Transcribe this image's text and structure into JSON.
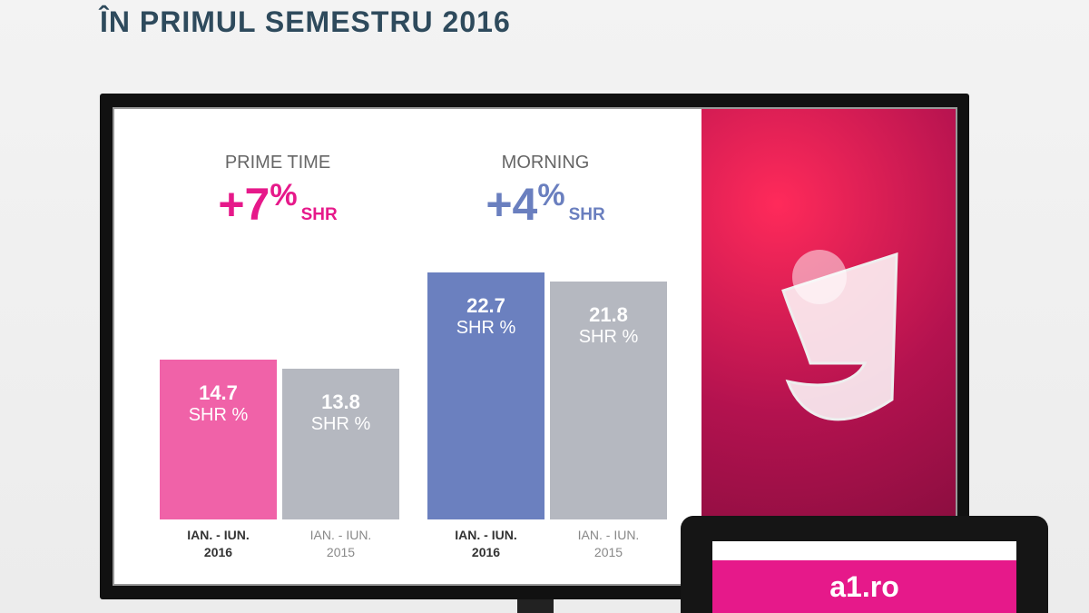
{
  "header": {
    "title": "ÎN PRIMUL SEMESTRU 2016"
  },
  "tablet": {
    "label": "a1.ro"
  },
  "chart_data": [
    {
      "type": "bar",
      "title": "PRIME TIME",
      "change": "+7",
      "change_unit": "%",
      "change_label": "SHR",
      "accent": "#e6198a",
      "categories": [
        "IAN. - IUN. 2016",
        "IAN. - IUN. 2015"
      ],
      "values": [
        14.7,
        13.8
      ],
      "value_unit": "SHR %",
      "colors": [
        "#f062a8",
        "#b5b8c0"
      ]
    },
    {
      "type": "bar",
      "title": "MORNING",
      "change": "+4",
      "change_unit": "%",
      "change_label": "SHR",
      "accent": "#6a7fbf",
      "categories": [
        "IAN. - IUN. 2016",
        "IAN. - IUN. 2015"
      ],
      "values": [
        22.7,
        21.8
      ],
      "value_unit": "SHR %",
      "colors": [
        "#6b80bf",
        "#b5b8c0"
      ]
    }
  ]
}
